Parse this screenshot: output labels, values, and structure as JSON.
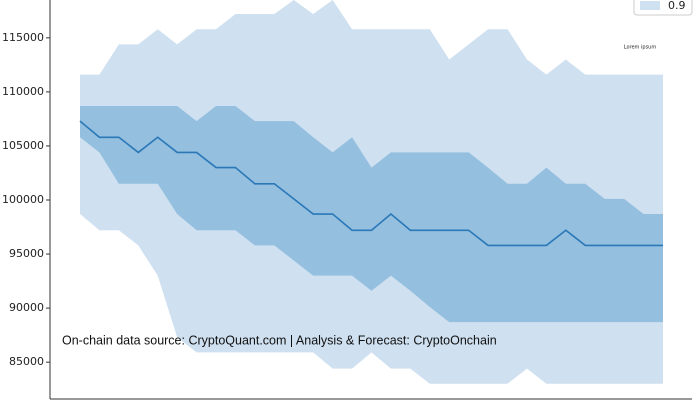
{
  "chart_data": {
    "type": "band-line",
    "categories": [
      null,
      null,
      null,
      null,
      null,
      null,
      null,
      null,
      null,
      null,
      null,
      null,
      null,
      null,
      null,
      null,
      null,
      null,
      null,
      null,
      null,
      null,
      null,
      null,
      null,
      null,
      null,
      null,
      null,
      null,
      null
    ],
    "series": [
      {
        "name": "0.9",
        "color": "#cfe0f0",
        "upper": [
          111600,
          111600,
          114400,
          114400,
          115800,
          114400,
          115800,
          115800,
          117200,
          117200,
          117200,
          118500,
          117200,
          118500,
          115800,
          115800,
          115800,
          115800,
          115800,
          113000,
          114400,
          115800,
          115800,
          113000,
          111600,
          113000,
          111600,
          111600,
          111600,
          111600,
          111600
        ],
        "lower": [
          98700,
          97200,
          97200,
          95800,
          93000,
          87300,
          85900,
          85900,
          85900,
          85900,
          85900,
          85900,
          85900,
          84400,
          84400,
          85900,
          84400,
          84400,
          83000,
          83000,
          83000,
          83000,
          83000,
          84400,
          83000,
          83000,
          83000,
          83000,
          83000,
          83000,
          83000
        ]
      },
      {
        "color": "#94bfdf",
        "upper": [
          108700,
          108700,
          108700,
          108700,
          108700,
          108700,
          107300,
          108700,
          108700,
          107300,
          107300,
          107300,
          105800,
          104400,
          105800,
          103000,
          104400,
          104400,
          104400,
          104400,
          104400,
          103000,
          101500,
          101500,
          103000,
          101500,
          101500,
          100100,
          100100,
          98700,
          98700
        ],
        "lower": [
          105800,
          104400,
          101500,
          101500,
          101500,
          98700,
          97200,
          97200,
          97200,
          95800,
          95800,
          94400,
          93000,
          93000,
          93000,
          91600,
          93000,
          91600,
          90100,
          88700,
          88700,
          88700,
          88700,
          88700,
          88700,
          88700,
          88700,
          88700,
          88700,
          88700,
          88700
        ]
      },
      {
        "color": "#2a78b8",
        "values": [
          107300,
          105800,
          105800,
          104400,
          105800,
          104400,
          104400,
          103000,
          103000,
          101500,
          101500,
          100100,
          98700,
          98700,
          97200,
          97200,
          98700,
          97200,
          97200,
          97200,
          97200,
          95800,
          95800,
          95800,
          95800,
          97200,
          95800,
          95800,
          95800,
          95800,
          95800
        ]
      }
    ],
    "ylim": [
      81500,
      118500
    ],
    "yticks": [
      85000,
      90000,
      95000,
      100000,
      105000,
      110000,
      115000
    ],
    "grid": false,
    "legend": "upper right",
    "annotations": [
      "Lorem ipsum",
      "On-chain data source: CryptoQuant.com | Analysis & Forecast: CryptoOnchain"
    ]
  }
}
